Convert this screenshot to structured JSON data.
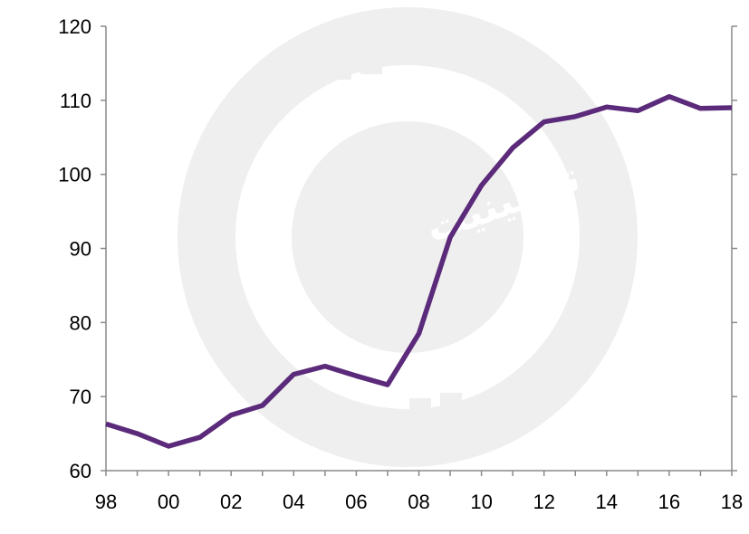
{
  "watermark": {
    "text": "تو پینیت",
    "color": "#efefef"
  },
  "chart_data": {
    "type": "line",
    "title": "",
    "xlabel": "",
    "ylabel": "",
    "x": [
      1998,
      1999,
      2000,
      2001,
      2002,
      2003,
      2004,
      2005,
      2006,
      2007,
      2008,
      2009,
      2010,
      2011,
      2012,
      2013,
      2014,
      2015,
      2016,
      2017,
      2018
    ],
    "series": [
      {
        "color": "#5b2a7a",
        "values": [
          66.3,
          65.0,
          63.3,
          64.5,
          67.5,
          68.8,
          73.0,
          74.1,
          72.8,
          71.6,
          78.5,
          91.5,
          98.5,
          103.6,
          107.1,
          107.8,
          109.1,
          108.6,
          110.5,
          108.9,
          109.0
        ]
      }
    ],
    "xlim": [
      1998,
      2018
    ],
    "ylim": [
      60,
      120
    ],
    "y_ticks": [
      60,
      70,
      80,
      90,
      100,
      110,
      120
    ],
    "x_ticks": [
      1998,
      2000,
      2002,
      2004,
      2006,
      2008,
      2010,
      2012,
      2014,
      2016,
      2018
    ],
    "x_tick_labels": [
      "98",
      "00",
      "02",
      "04",
      "06",
      "08",
      "10",
      "12",
      "14",
      "16",
      "18"
    ],
    "y_tick_labels": [
      "60",
      "70",
      "80",
      "90",
      "100",
      "110",
      "120"
    ],
    "grid": false,
    "legend": "none",
    "axis_color": "#8a8a8a"
  }
}
